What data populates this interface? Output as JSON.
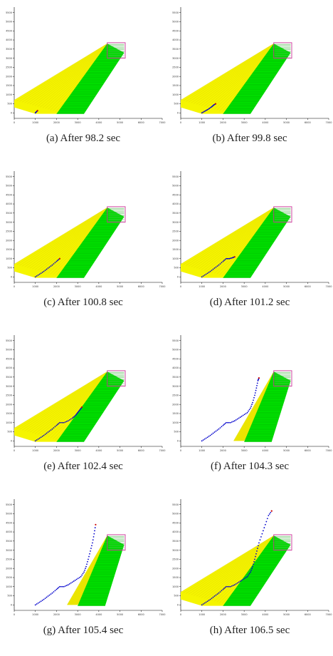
{
  "figure": {
    "panels": [
      {
        "id": "a",
        "caption": "(a)  After 98.2 sec"
      },
      {
        "id": "b",
        "caption": "(b)  After 99.8 sec"
      },
      {
        "id": "c",
        "caption": "(c)  After 100.8 sec"
      },
      {
        "id": "d",
        "caption": "(d)  After 101.2 sec"
      },
      {
        "id": "e",
        "caption": "(e)  After 102.4 sec"
      },
      {
        "id": "f",
        "caption": "(f)  After 104.3 sec"
      },
      {
        "id": "g",
        "caption": "(g)  After 105.4 sec"
      },
      {
        "id": "h",
        "caption": "(h)  After 106.5 sec"
      }
    ]
  },
  "colors": {
    "yellow_region": "#f5f500",
    "green_region": "#00e000",
    "trajectory": "#0000cc",
    "trajectory_head": "#cc0000",
    "goal_box": "#cc3399"
  },
  "chart_data": [
    {
      "type": "scatter",
      "panel": "a",
      "xlim": [
        0,
        7000
      ],
      "ylim": [
        -300,
        5800
      ],
      "xticks": [
        "0",
        "1000",
        "2000",
        "3000",
        "4000",
        "5000",
        "6000",
        "7000"
      ],
      "yticks": [
        "0",
        "500",
        "1000",
        "1500",
        "2000",
        "2500",
        "3000",
        "3500",
        "4000",
        "4500",
        "5000",
        "5500"
      ],
      "regions": [
        "yellow",
        "green"
      ],
      "trajectory": [
        [
          1000,
          0
        ],
        [
          1050,
          60
        ],
        [
          1100,
          120
        ]
      ]
    },
    {
      "type": "scatter",
      "panel": "b",
      "xlim": [
        0,
        7000
      ],
      "ylim": [
        -300,
        5800
      ],
      "xticks": [
        "0",
        "1000",
        "2000",
        "3000",
        "4000",
        "5000",
        "6000",
        "7000"
      ],
      "yticks": [
        "0",
        "500",
        "1000",
        "1500",
        "2000",
        "2500",
        "3000",
        "3500",
        "4000",
        "4500",
        "5000",
        "5500"
      ],
      "regions": [
        "yellow",
        "green"
      ],
      "trajectory": [
        [
          1000,
          0
        ],
        [
          1150,
          100
        ],
        [
          1300,
          200
        ],
        [
          1450,
          320
        ],
        [
          1550,
          420
        ],
        [
          1650,
          500
        ]
      ]
    },
    {
      "type": "scatter",
      "panel": "c",
      "xlim": [
        0,
        7000
      ],
      "ylim": [
        -300,
        5800
      ],
      "xticks": [
        "0",
        "1000",
        "2000",
        "3000",
        "4000",
        "5000",
        "6000",
        "7000"
      ],
      "yticks": [
        "0",
        "500",
        "1000",
        "1500",
        "2000",
        "2500",
        "3000",
        "3500",
        "4000",
        "4500",
        "5000",
        "5500"
      ],
      "regions": [
        "yellow",
        "green"
      ],
      "trajectory": [
        [
          1000,
          0
        ],
        [
          1200,
          150
        ],
        [
          1400,
          300
        ],
        [
          1600,
          480
        ],
        [
          1800,
          650
        ],
        [
          2000,
          850
        ],
        [
          2150,
          1000
        ]
      ]
    },
    {
      "type": "scatter",
      "panel": "d",
      "xlim": [
        0,
        7000
      ],
      "ylim": [
        -300,
        5800
      ],
      "xticks": [
        "0",
        "1000",
        "2000",
        "3000",
        "4000",
        "5000",
        "6000",
        "7000"
      ],
      "yticks": [
        "0",
        "500",
        "1000",
        "1500",
        "2000",
        "2500",
        "3000",
        "3500",
        "4000",
        "4500",
        "5000",
        "5500"
      ],
      "regions": [
        "yellow",
        "green"
      ],
      "trajectory": [
        [
          1000,
          0
        ],
        [
          1200,
          150
        ],
        [
          1400,
          300
        ],
        [
          1600,
          480
        ],
        [
          1800,
          650
        ],
        [
          2000,
          850
        ],
        [
          2150,
          1000
        ],
        [
          2300,
          1000
        ],
        [
          2450,
          1050
        ],
        [
          2550,
          1100
        ]
      ]
    },
    {
      "type": "scatter",
      "panel": "e",
      "xlim": [
        0,
        7000
      ],
      "ylim": [
        -300,
        5800
      ],
      "xticks": [
        "0",
        "1000",
        "2000",
        "3000",
        "4000",
        "5000",
        "6000",
        "7000"
      ],
      "yticks": [
        "0",
        "500",
        "1000",
        "1500",
        "2000",
        "2500",
        "3000",
        "3500",
        "4000",
        "4500",
        "5000",
        "5500"
      ],
      "regions": [
        "yellow",
        "green"
      ],
      "trajectory": [
        [
          1000,
          0
        ],
        [
          1200,
          150
        ],
        [
          1400,
          300
        ],
        [
          1600,
          480
        ],
        [
          1800,
          650
        ],
        [
          2000,
          850
        ],
        [
          2150,
          1000
        ],
        [
          2350,
          1000
        ],
        [
          2550,
          1100
        ],
        [
          2750,
          1250
        ],
        [
          2900,
          1400
        ],
        [
          3000,
          1550
        ],
        [
          3100,
          1700
        ],
        [
          3200,
          1850
        ]
      ]
    },
    {
      "type": "scatter",
      "panel": "f",
      "xlim": [
        0,
        7000
      ],
      "ylim": [
        -300,
        5800
      ],
      "xticks": [
        "0",
        "1000",
        "2000",
        "3000",
        "4000",
        "5000",
        "6000",
        "7000"
      ],
      "yticks": [
        "0",
        "500",
        "1000",
        "1500",
        "2000",
        "2500",
        "3000",
        "3500",
        "4000",
        "4500",
        "5000",
        "5500"
      ],
      "regions": [
        "green",
        "yellow-sliver"
      ],
      "trajectory": [
        [
          1000,
          0
        ],
        [
          1200,
          150
        ],
        [
          1400,
          300
        ],
        [
          1600,
          480
        ],
        [
          1800,
          650
        ],
        [
          2000,
          850
        ],
        [
          2150,
          1000
        ],
        [
          2350,
          1000
        ],
        [
          2550,
          1100
        ],
        [
          2750,
          1250
        ],
        [
          2950,
          1400
        ],
        [
          3150,
          1550
        ],
        [
          3300,
          1800
        ],
        [
          3400,
          2100
        ],
        [
          3500,
          2500
        ],
        [
          3580,
          2900
        ],
        [
          3650,
          3300
        ],
        [
          3700,
          3450
        ]
      ]
    },
    {
      "type": "scatter",
      "panel": "g",
      "xlim": [
        0,
        7000
      ],
      "ylim": [
        -300,
        5800
      ],
      "xticks": [
        "0",
        "1000",
        "2000",
        "3000",
        "4000",
        "5000",
        "6000",
        "7000"
      ],
      "yticks": [
        "0",
        "500",
        "1000",
        "1500",
        "2000",
        "2500",
        "3000",
        "3500",
        "4000",
        "4500",
        "5000",
        "5500"
      ],
      "regions": [
        "green",
        "yellow-sliver"
      ],
      "trajectory": [
        [
          1000,
          0
        ],
        [
          1200,
          150
        ],
        [
          1400,
          300
        ],
        [
          1600,
          480
        ],
        [
          1800,
          650
        ],
        [
          2000,
          850
        ],
        [
          2150,
          1000
        ],
        [
          2350,
          1000
        ],
        [
          2550,
          1100
        ],
        [
          2750,
          1250
        ],
        [
          2950,
          1400
        ],
        [
          3150,
          1550
        ],
        [
          3300,
          1800
        ],
        [
          3400,
          2100
        ],
        [
          3500,
          2500
        ],
        [
          3600,
          2950
        ],
        [
          3700,
          3400
        ],
        [
          3780,
          3900
        ],
        [
          3850,
          4400
        ]
      ]
    },
    {
      "type": "scatter",
      "panel": "h",
      "xlim": [
        0,
        7000
      ],
      "ylim": [
        -300,
        5800
      ],
      "xticks": [
        "0",
        "1000",
        "2000",
        "3000",
        "4000",
        "5000",
        "6000",
        "7000"
      ],
      "yticks": [
        "0",
        "500",
        "1000",
        "1500",
        "2000",
        "2500",
        "3000",
        "3500",
        "4000",
        "4500",
        "5000",
        "5500"
      ],
      "regions": [
        "yellow",
        "green"
      ],
      "trajectory": [
        [
          1000,
          0
        ],
        [
          1200,
          150
        ],
        [
          1400,
          300
        ],
        [
          1600,
          480
        ],
        [
          1800,
          650
        ],
        [
          2000,
          850
        ],
        [
          2150,
          1000
        ],
        [
          2350,
          1000
        ],
        [
          2550,
          1100
        ],
        [
          2750,
          1250
        ],
        [
          2950,
          1400
        ],
        [
          3150,
          1550
        ],
        [
          3300,
          1800
        ],
        [
          3400,
          2100
        ],
        [
          3500,
          2500
        ],
        [
          3600,
          2950
        ],
        [
          3700,
          3400
        ],
        [
          3850,
          3900
        ],
        [
          4000,
          4400
        ],
        [
          4150,
          4900
        ],
        [
          4300,
          5150
        ]
      ]
    }
  ]
}
